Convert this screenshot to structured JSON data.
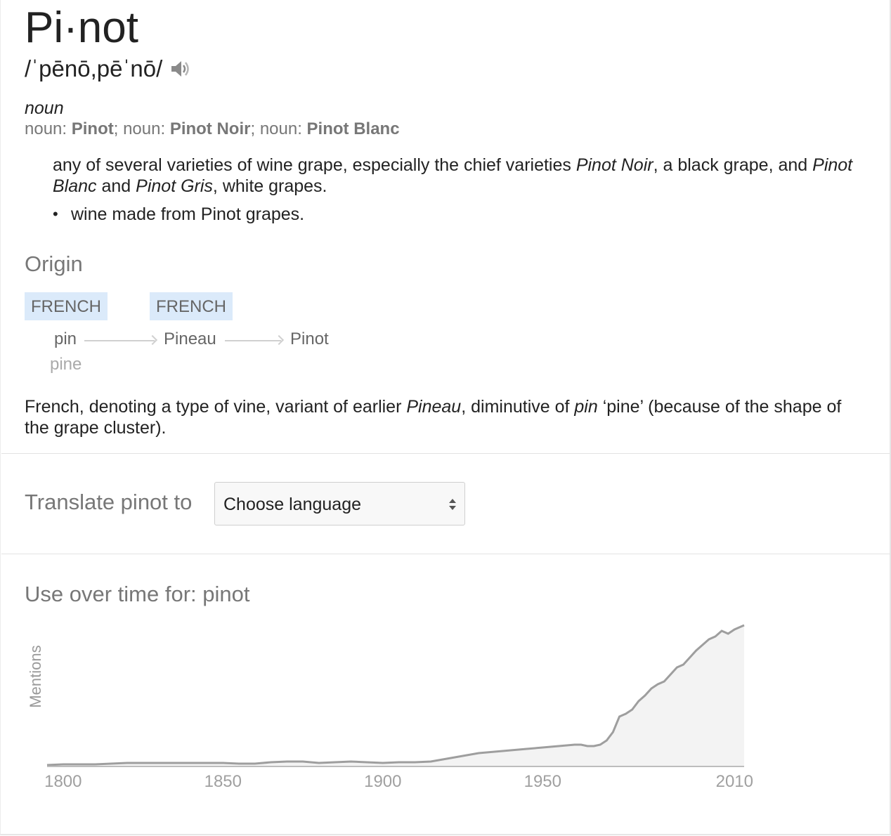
{
  "entry": {
    "headword": "Pi·not",
    "phonetic": "/ˈpēnō,pēˈnō/",
    "speaker_icon": "speaker-icon",
    "part_of_speech": "noun",
    "variants": [
      {
        "prefix": "noun: ",
        "term": "Pinot",
        "sep": "; "
      },
      {
        "prefix": "noun: ",
        "term": "Pinot Noir",
        "sep": "; "
      },
      {
        "prefix": "noun: ",
        "term": "Pinot Blanc",
        "sep": ""
      }
    ],
    "definition": {
      "t1": "any of several varieties of wine grape, especially the chief varieties ",
      "i1": "Pinot Noir",
      "t2": ", a black grape, and ",
      "i2": "Pinot Blanc",
      "t3": " and ",
      "i3": "Pinot Gris",
      "t4": ", white grapes."
    },
    "sub_definition": "wine made from Pinot grapes.",
    "bullet": "•"
  },
  "origin": {
    "heading": "Origin",
    "tags": [
      "FRENCH",
      "FRENCH"
    ],
    "words": [
      "pin",
      "Pineau",
      "Pinot"
    ],
    "gloss": "pine",
    "text": {
      "t1": "French, denoting a type of vine, variant of earlier ",
      "i1": "Pineau",
      "t2": ", diminutive of ",
      "i2": "pin",
      "t3": " ‘pine’ (because of the shape of the grape cluster)."
    }
  },
  "translate": {
    "label": "Translate pinot to",
    "select_value": "Choose language"
  },
  "usage": {
    "heading": "Use over time for: pinot"
  },
  "chart_data": {
    "type": "area",
    "title": "",
    "ylabel": "Mentions",
    "xlabel": "",
    "x_ticks": [
      1800,
      1850,
      1900,
      1950,
      2010
    ],
    "xlim": [
      1795,
      2013
    ],
    "ylim": [
      0,
      100
    ],
    "series": [
      {
        "x": [
          1795,
          1800,
          1805,
          1810,
          1815,
          1820,
          1825,
          1830,
          1835,
          1840,
          1845,
          1850,
          1855,
          1860,
          1865,
          1870,
          1875,
          1880,
          1885,
          1890,
          1895,
          1900,
          1905,
          1910,
          1915,
          1920,
          1925,
          1930,
          1935,
          1940,
          1945,
          1950,
          1955,
          1960,
          1962,
          1964,
          1966,
          1968,
          1970,
          1972,
          1974,
          1976,
          1978,
          1980,
          1982,
          1984,
          1986,
          1988,
          1990,
          1992,
          1994,
          1996,
          1998,
          2000,
          2002,
          2004,
          2006,
          2008,
          2010,
          2013
        ],
        "y": [
          0.5,
          1,
          1,
          1,
          1.5,
          2,
          2,
          2,
          2,
          2,
          2,
          2,
          1.5,
          1.5,
          2.5,
          3,
          3,
          2,
          2.5,
          3,
          2.5,
          2,
          2.5,
          2.5,
          3,
          5,
          7,
          9,
          10,
          11,
          12,
          13,
          14,
          15,
          15,
          14,
          14,
          15,
          18,
          24,
          35,
          37,
          40,
          46,
          50,
          55,
          58,
          60,
          65,
          70,
          72,
          77,
          82,
          86,
          90,
          92,
          96,
          94,
          97,
          100
        ],
        "color": "#9e9e9e",
        "fill": "#f3f3f3"
      }
    ]
  }
}
